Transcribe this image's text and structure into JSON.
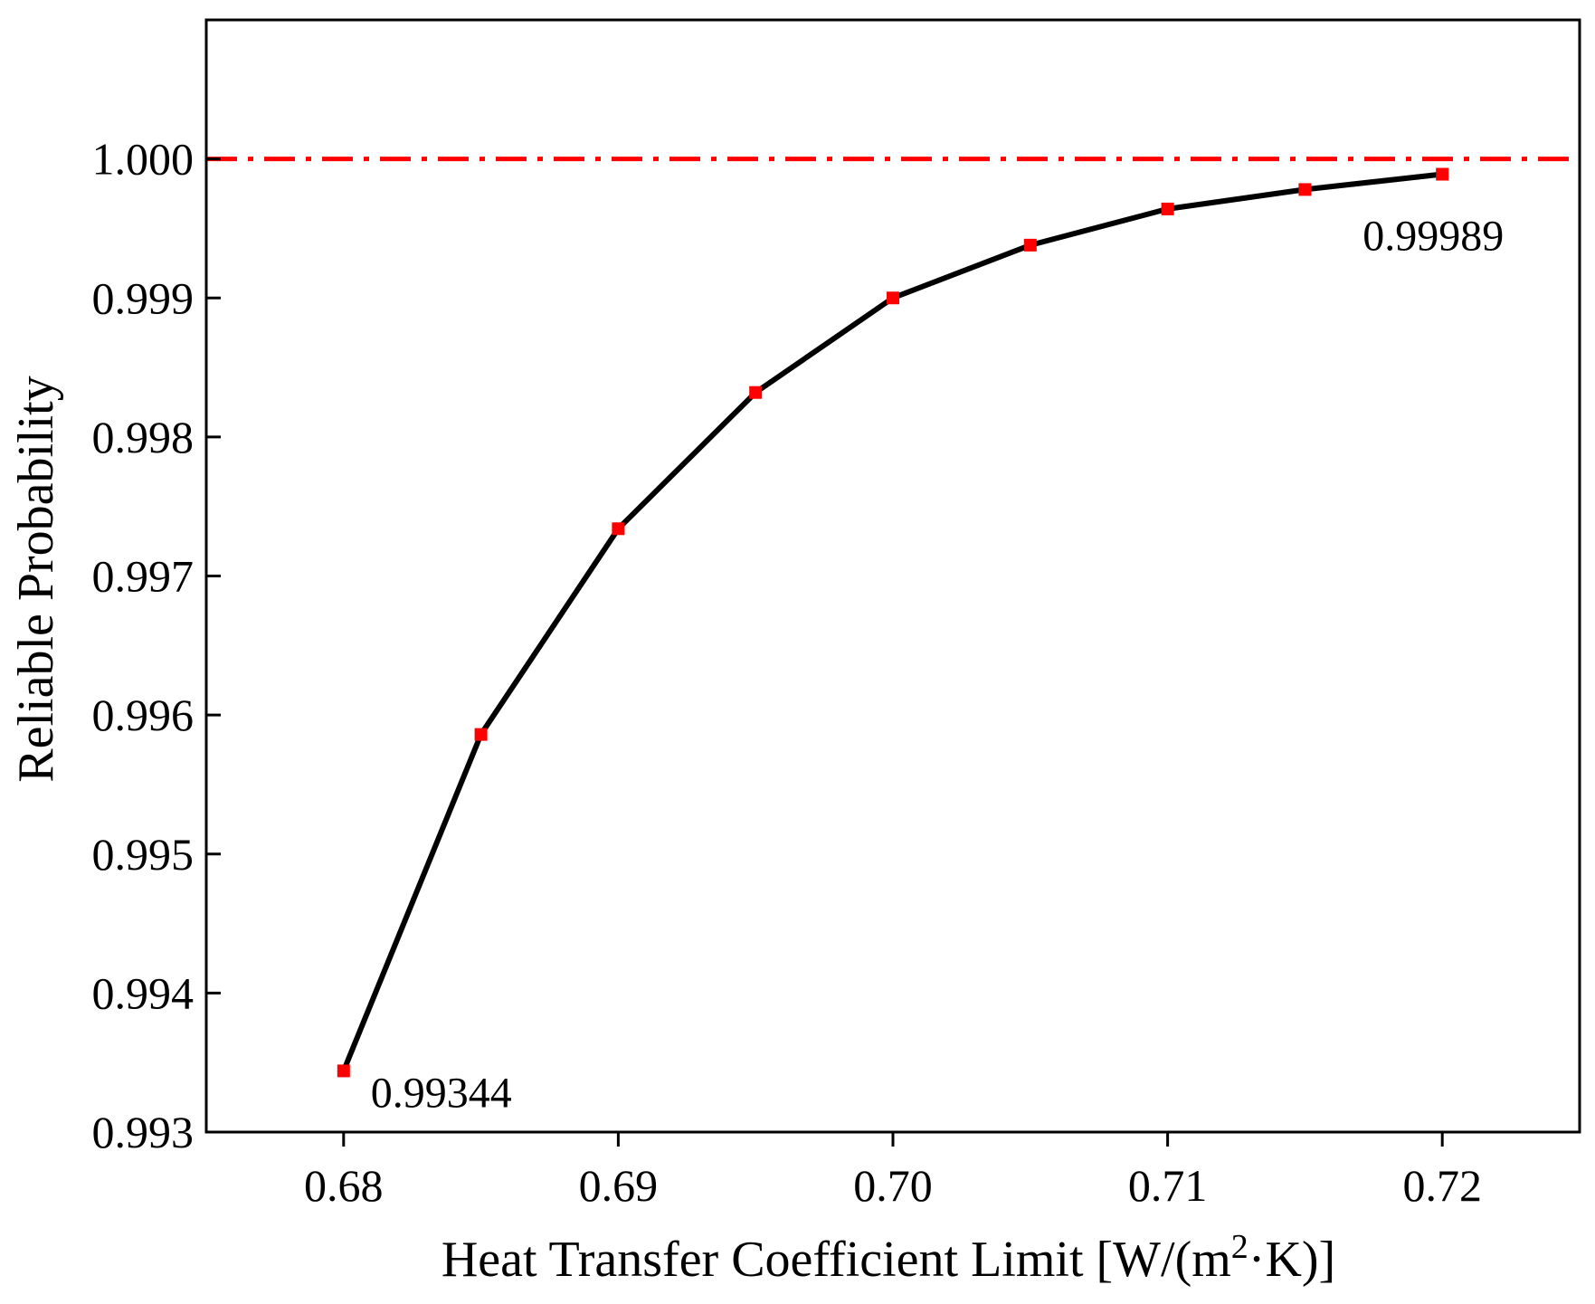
{
  "chart_data": {
    "type": "line",
    "title": "",
    "xlabel_prefix": "Heat Transfer Coefficient Limit [W/(m",
    "xlabel_sup": "2",
    "xlabel_suffix": "·K)]",
    "ylabel": "Reliable Probability",
    "xlim": [
      0.675,
      0.725
    ],
    "ylim": [
      0.993,
      1.001
    ],
    "x_ticks": [
      0.68,
      0.69,
      0.7,
      0.71,
      0.72
    ],
    "x_tick_labels": [
      "0.68",
      "0.69",
      "0.70",
      "0.71",
      "0.72"
    ],
    "y_ticks": [
      0.993,
      0.994,
      0.995,
      0.996,
      0.997,
      0.998,
      0.999,
      1.0
    ],
    "y_tick_labels": [
      "0.993",
      "0.994",
      "0.995",
      "0.996",
      "0.997",
      "0.998",
      "0.999",
      "1.000"
    ],
    "grid": false,
    "series": [
      {
        "name": "Reliable Probability",
        "line_color": "#000000",
        "marker_color": "#ff0000",
        "x": [
          0.68,
          0.685,
          0.69,
          0.695,
          0.7,
          0.705,
          0.71,
          0.715,
          0.72
        ],
        "y": [
          0.99344,
          0.99586,
          0.99734,
          0.99832,
          0.999,
          0.99938,
          0.99964,
          0.99978,
          0.99989
        ]
      }
    ],
    "reference_line": {
      "y": 1.0,
      "color": "#ff0000",
      "style": "dash-dot"
    },
    "annotations": [
      {
        "text": "0.99344",
        "x": 0.68,
        "y": 0.99344,
        "placement": "below-right"
      },
      {
        "text": "0.99989",
        "x": 0.72,
        "y": 0.99989,
        "placement": "below-left"
      }
    ]
  }
}
